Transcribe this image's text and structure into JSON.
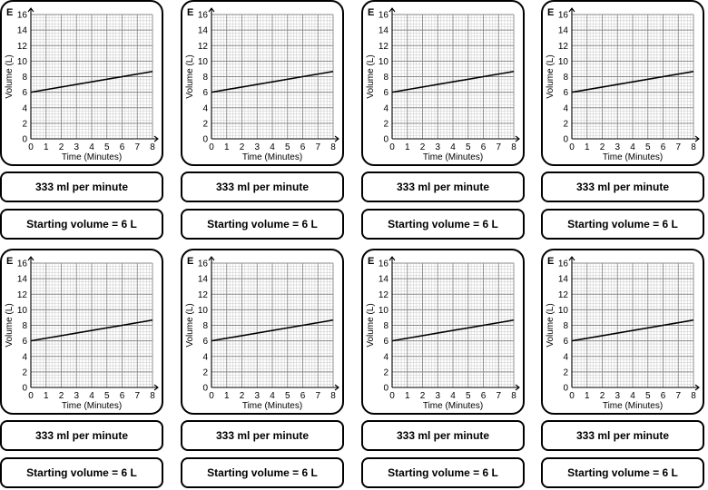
{
  "card_letter": "E",
  "rate_text": "333 ml per minute",
  "start_text": "Starting volume = 6 L",
  "chart_data": {
    "type": "line",
    "title": "",
    "xlabel": "Time (Minutes)",
    "ylabel": "Volume (L)",
    "xlim": [
      0,
      8
    ],
    "ylim": [
      0,
      16
    ],
    "xticks": [
      0,
      1,
      2,
      3,
      4,
      5,
      6,
      7,
      8
    ],
    "yticks": [
      0,
      2,
      4,
      6,
      8,
      10,
      12,
      14,
      16
    ],
    "grid": true,
    "series": [
      {
        "name": "Volume",
        "x": [
          0,
          8
        ],
        "y": [
          6,
          8.67
        ]
      }
    ]
  },
  "cards": [
    {
      "id": "card-1"
    },
    {
      "id": "card-2"
    },
    {
      "id": "card-3"
    },
    {
      "id": "card-4"
    },
    {
      "id": "card-5"
    },
    {
      "id": "card-6"
    },
    {
      "id": "card-7"
    },
    {
      "id": "card-8"
    }
  ]
}
